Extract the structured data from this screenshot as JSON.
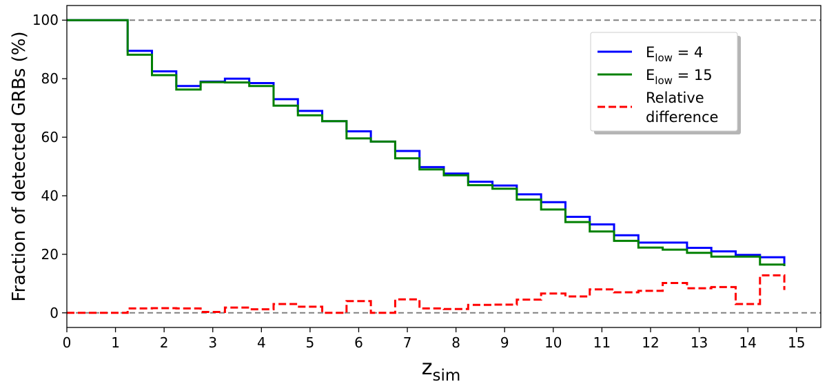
{
  "chart_data": {
    "type": "line",
    "step": "post",
    "title": "",
    "xlabel": {
      "main": "z",
      "sub": "sim"
    },
    "ylabel": "Fraction of detected GRBs (%)",
    "xlim": [
      0,
      15.5
    ],
    "ylim": [
      -5,
      105
    ],
    "x_ticks": [
      "0",
      "1",
      "2",
      "3",
      "4",
      "5",
      "6",
      "7",
      "8",
      "9",
      "10",
      "11",
      "12",
      "13",
      "14",
      "15"
    ],
    "y_ticks": [
      "0",
      "20",
      "40",
      "60",
      "80",
      "100"
    ],
    "reference_lines": [
      0,
      100
    ],
    "grid": false,
    "legend_location": "upper right",
    "x": [
      0,
      0.25,
      0.75,
      1.25,
      1.75,
      2.25,
      2.75,
      3.25,
      3.75,
      4.25,
      4.75,
      5.25,
      5.75,
      6.25,
      6.75,
      7.25,
      7.75,
      8.25,
      8.75,
      9.25,
      9.75,
      10.25,
      10.75,
      11.25,
      11.75,
      12.25,
      12.75,
      13.25,
      13.75,
      14.25,
      14.75
    ],
    "series": [
      {
        "name": "E_low = 4",
        "legend": {
          "main": "E",
          "sub": "low",
          "suffix": " = 4"
        },
        "color": "#0000ff",
        "dash": "solid",
        "values": [
          100,
          100,
          100,
          89.5,
          82.5,
          77.5,
          79,
          80,
          78.5,
          73,
          69,
          65.5,
          62,
          58.5,
          55.3,
          49.8,
          47.6,
          44.8,
          43.5,
          40.5,
          37.8,
          32.8,
          30.2,
          26.5,
          24,
          24,
          22.2,
          21,
          19.8,
          19,
          16
        ]
      },
      {
        "name": "E_low = 15",
        "legend": {
          "main": "E",
          "sub": "low",
          "suffix": " = 15"
        },
        "color": "#008000",
        "dash": "solid",
        "values": [
          100,
          100,
          100,
          88.2,
          81.2,
          76.3,
          78.8,
          78.7,
          77.5,
          70.8,
          67.5,
          65.5,
          59.6,
          58.5,
          52.8,
          49,
          47,
          43.6,
          42.4,
          38.7,
          35.3,
          31,
          27.8,
          24.6,
          22.3,
          21.6,
          20.5,
          19.2,
          19.2,
          16.5,
          16
        ]
      },
      {
        "name": "Relative difference",
        "legend": {
          "lines": [
            "Relative",
            "difference"
          ]
        },
        "color": "#ff0000",
        "dash": "dashed",
        "values": [
          0,
          0,
          0,
          1.5,
          1.6,
          1.5,
          0.3,
          1.8,
          1.2,
          3,
          2.1,
          0,
          4,
          0,
          4.6,
          1.5,
          1.3,
          2.7,
          2.8,
          4.5,
          6.6,
          5.6,
          8,
          7,
          7.5,
          10.2,
          8.4,
          8.8,
          3,
          12.8,
          7.8
        ]
      }
    ]
  }
}
